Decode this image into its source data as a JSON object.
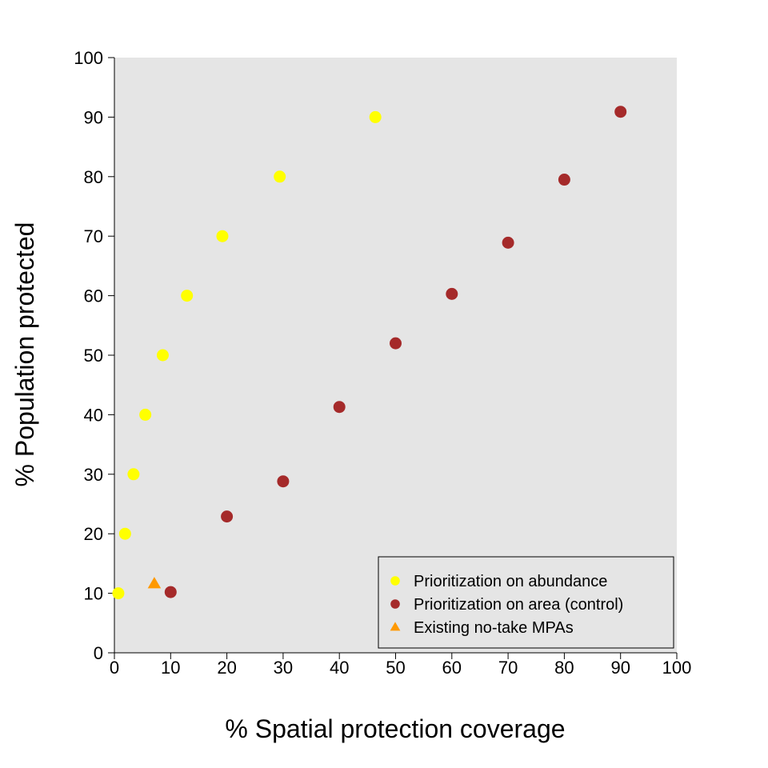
{
  "chart_data": {
    "type": "scatter",
    "xlabel": "% Spatial protection coverage",
    "ylabel": "% Population protected",
    "xlim": [
      0,
      100
    ],
    "ylim": [
      0,
      100
    ],
    "x_ticks": [
      0,
      10,
      20,
      30,
      40,
      50,
      60,
      70,
      80,
      90,
      100
    ],
    "y_ticks": [
      0,
      10,
      20,
      30,
      40,
      50,
      60,
      70,
      80,
      90,
      100
    ],
    "background": "#e5e5e5",
    "grid": false,
    "legend_position": "bottom-right",
    "series": [
      {
        "name": "Prioritization on abundance",
        "marker": "circle",
        "color": "#ffff00",
        "points": [
          [
            0.7,
            10
          ],
          [
            1.9,
            20
          ],
          [
            3.4,
            30
          ],
          [
            5.5,
            40
          ],
          [
            8.6,
            50
          ],
          [
            12.9,
            60
          ],
          [
            19.2,
            70
          ],
          [
            29.4,
            80
          ],
          [
            46.4,
            90
          ]
        ]
      },
      {
        "name": "Prioritization on area (control)",
        "marker": "circle",
        "color": "#a52a2a",
        "points": [
          [
            10,
            10.2
          ],
          [
            20,
            22.9
          ],
          [
            30,
            28.8
          ],
          [
            40,
            41.3
          ],
          [
            50,
            52
          ],
          [
            60,
            60.3
          ],
          [
            70,
            68.9
          ],
          [
            80,
            79.5
          ],
          [
            90,
            90.9
          ]
        ]
      },
      {
        "name": "Existing no-take MPAs",
        "marker": "triangle",
        "color": "#ff9900",
        "points": [
          [
            7.1,
            11.6
          ]
        ]
      }
    ]
  }
}
